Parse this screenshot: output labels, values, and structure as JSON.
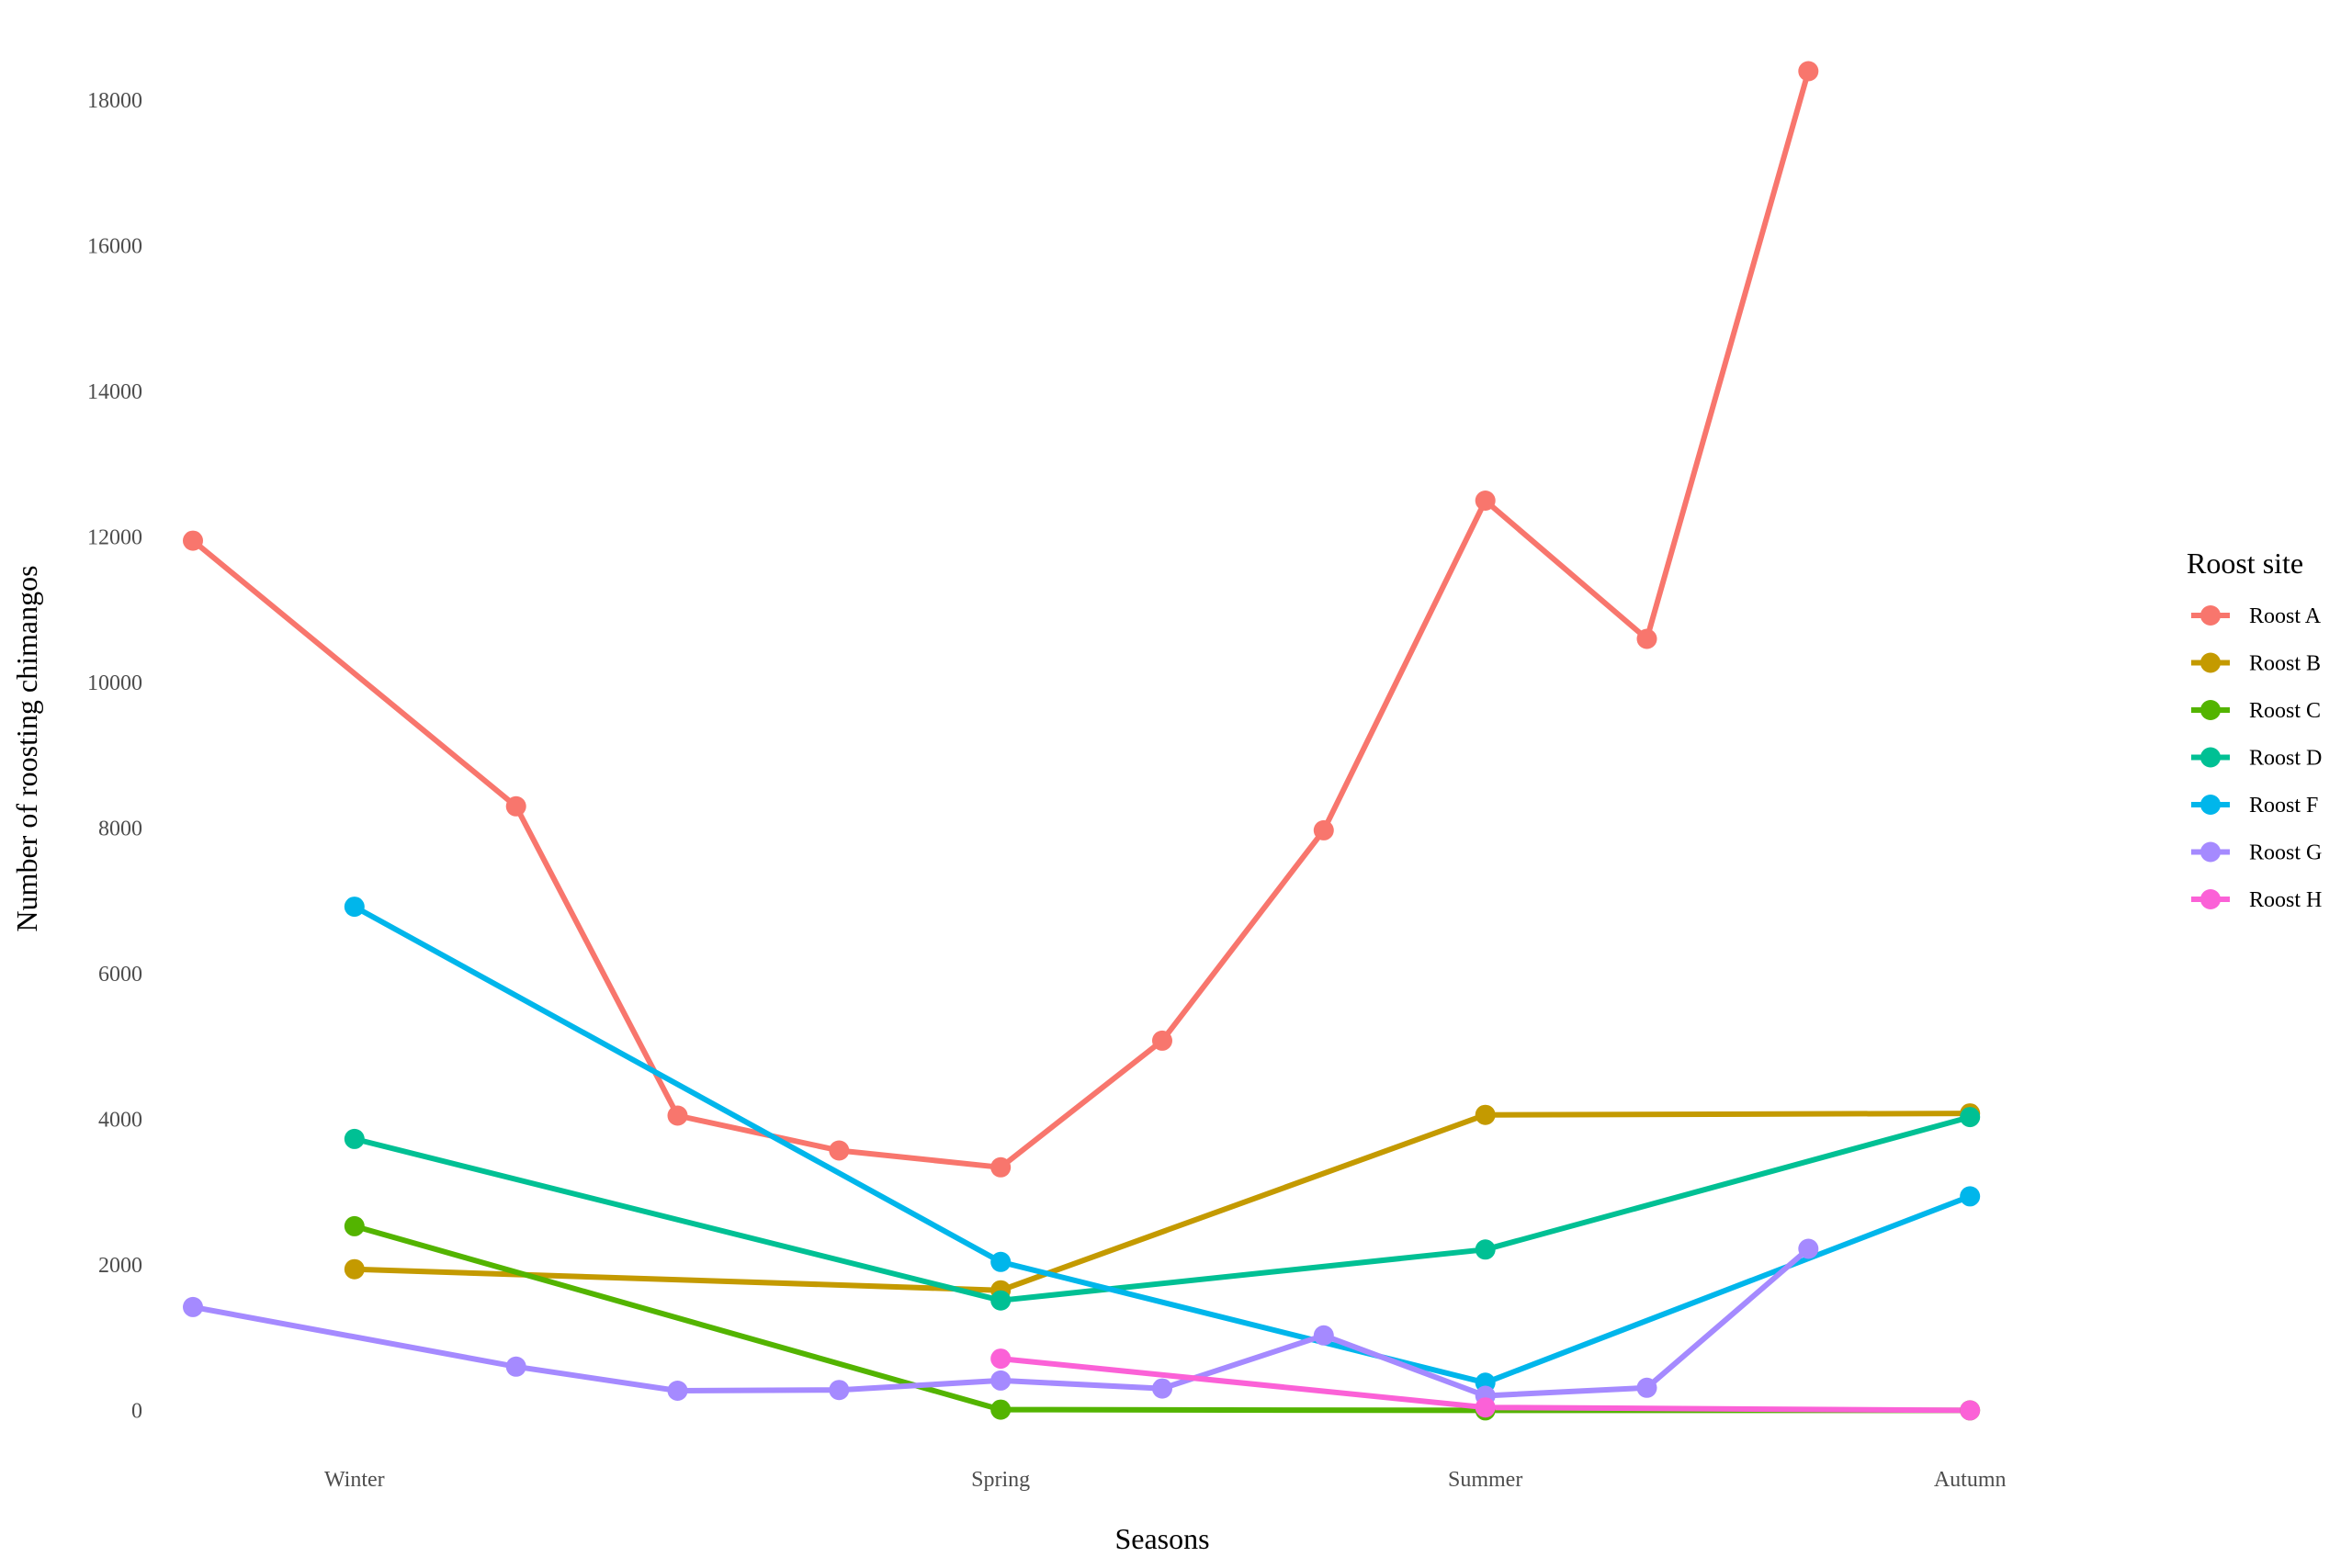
{
  "chart_data": {
    "type": "line",
    "xlabel": "Seasons",
    "ylabel": "Number of roosting chimangos",
    "x_ticks": [
      {
        "label": "Winter",
        "x": 1
      },
      {
        "label": "Spring",
        "x": 5
      },
      {
        "label": "Summer",
        "x": 8
      },
      {
        "label": "Autumn",
        "x": 11
      }
    ],
    "xlim": [
      0,
      12
    ],
    "ylim": [
      -500,
      19000
    ],
    "y_ticks": [
      0,
      2000,
      4000,
      6000,
      8000,
      10000,
      12000,
      14000,
      16000,
      18000
    ],
    "grid": false,
    "legend": {
      "title": "Roost site",
      "position": "right"
    },
    "series": [
      {
        "name": "Roost A",
        "color": "#F8766D",
        "points": [
          [
            0,
            11950
          ],
          [
            2,
            8300
          ],
          [
            3,
            4050
          ],
          [
            4,
            3570
          ],
          [
            5,
            3340
          ],
          [
            6,
            5080
          ],
          [
            7,
            7970
          ],
          [
            8,
            12500
          ],
          [
            9,
            10600
          ],
          [
            10,
            18400
          ]
        ]
      },
      {
        "name": "Roost B",
        "color": "#C49A00",
        "points": [
          [
            1,
            1940
          ],
          [
            5,
            1650
          ],
          [
            8,
            4060
          ],
          [
            11,
            4080
          ]
        ]
      },
      {
        "name": "Roost C",
        "color": "#53B400",
        "points": [
          [
            1,
            2530
          ],
          [
            5,
            10
          ],
          [
            8,
            0
          ],
          [
            11,
            0
          ]
        ]
      },
      {
        "name": "Roost D",
        "color": "#00C094",
        "points": [
          [
            1,
            3730
          ],
          [
            5,
            1510
          ],
          [
            8,
            2210
          ],
          [
            11,
            4030
          ]
        ]
      },
      {
        "name": "Roost F",
        "color": "#00B6EB",
        "points": [
          [
            1,
            6920
          ],
          [
            5,
            2040
          ],
          [
            8,
            380
          ],
          [
            11,
            2940
          ]
        ]
      },
      {
        "name": "Roost G",
        "color": "#A58AFF",
        "points": [
          [
            0,
            1420
          ],
          [
            2,
            600
          ],
          [
            3,
            270
          ],
          [
            4,
            280
          ],
          [
            5,
            410
          ],
          [
            6,
            300
          ],
          [
            7,
            1030
          ],
          [
            8,
            200
          ],
          [
            9,
            310
          ],
          [
            10,
            2220
          ]
        ]
      },
      {
        "name": "Roost H",
        "color": "#FB61D7",
        "points": [
          [
            5,
            710
          ],
          [
            8,
            40
          ],
          [
            11,
            0
          ]
        ]
      }
    ]
  }
}
